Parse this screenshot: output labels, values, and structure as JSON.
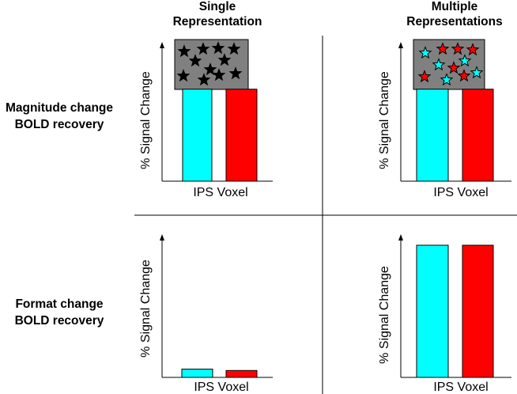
{
  "columns": [
    {
      "title_line1": "Single",
      "title_line2": "Representation"
    },
    {
      "title_line1": "Multiple",
      "title_line2": "Representations"
    }
  ],
  "rows": [
    {
      "label_line1": "Magnitude change",
      "label_line2": "BOLD recovery"
    },
    {
      "label_line1": "Format change",
      "label_line2": "BOLD recovery"
    }
  ],
  "y_axis_label": "% Signal Change",
  "x_axis_label": "IPS Voxel",
  "colors": {
    "cyan": "#00ffff",
    "red": "#ff0000",
    "panel_gray": "#808080",
    "black": "#000000"
  },
  "chart_data": [
    {
      "type": "bar",
      "panel": "magnitude-single",
      "categories": [
        "cyan",
        "red"
      ],
      "values": [
        0.68,
        0.68
      ],
      "xlabel": "IPS Voxel",
      "ylabel": "% Signal Change"
    },
    {
      "type": "bar",
      "panel": "magnitude-multiple",
      "categories": [
        "cyan",
        "red"
      ],
      "values": [
        0.68,
        0.68
      ],
      "xlabel": "IPS Voxel",
      "ylabel": "% Signal Change"
    },
    {
      "type": "bar",
      "panel": "format-single",
      "categories": [
        "cyan",
        "red"
      ],
      "values": [
        0.06,
        0.05
      ],
      "xlabel": "IPS Voxel",
      "ylabel": "% Signal Change"
    },
    {
      "type": "bar",
      "panel": "format-multiple",
      "categories": [
        "cyan",
        "red"
      ],
      "values": [
        0.96,
        0.96
      ],
      "xlabel": "IPS Voxel",
      "ylabel": "% Signal Change"
    }
  ]
}
